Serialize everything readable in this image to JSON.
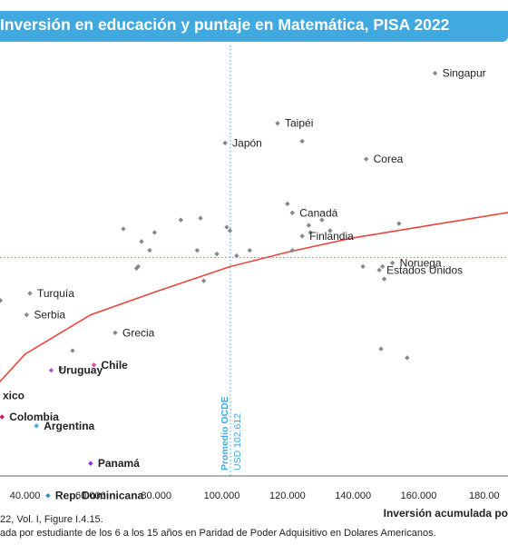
{
  "title": "Inversión en educación y puntaje en Matemática, PISA 2022",
  "chart_data": {
    "type": "scatter",
    "xlabel": "Inversión acumulada po",
    "x_ticks": [
      "40.000",
      "60.000",
      "80.000",
      "100.000",
      "120.000",
      "140.000",
      "160.000",
      "180.00"
    ],
    "x_tick_values": [
      40000,
      60000,
      80000,
      100000,
      120000,
      140000,
      160000,
      180000
    ],
    "xlim": [
      31000,
      190000
    ],
    "ylim": [
      350,
      590
    ],
    "grid": false,
    "reference_line": {
      "label_1": "Promedio OCDE",
      "label_2": "USD 102.612",
      "x": 102612,
      "y": 472,
      "color": "#3fa9e0"
    },
    "trend_color": "#e8463c",
    "trend_points": [
      [
        31000,
        400
      ],
      [
        40000,
        418
      ],
      [
        60000,
        440
      ],
      [
        80000,
        453
      ],
      [
        102612,
        467
      ],
      [
        120000,
        475
      ],
      [
        140000,
        483
      ],
      [
        160000,
        489
      ],
      [
        190000,
        498
      ]
    ],
    "labeled_points": [
      {
        "name": "Singapur",
        "x": 165000,
        "y": 575,
        "color": "#888888",
        "text_color": "#222222",
        "bold": false
      },
      {
        "name": "Taipéi",
        "x": 117000,
        "y": 547,
        "color": "#888888",
        "text_color": "#222222",
        "bold": false
      },
      {
        "name": "Japón",
        "x": 101000,
        "y": 536,
        "color": "#888888",
        "text_color": "#222222",
        "bold": false
      },
      {
        "name": "Corea",
        "x": 144000,
        "y": 527,
        "color": "#888888",
        "text_color": "#222222",
        "bold": false
      },
      {
        "name": "Canadá",
        "x": 121500,
        "y": 497,
        "color": "#888888",
        "text_color": "#222222",
        "bold": false
      },
      {
        "name": "Finlandia",
        "x": 124500,
        "y": 484,
        "color": "#888888",
        "text_color": "#222222",
        "bold": false
      },
      {
        "name": "Noruega",
        "x": 152000,
        "y": 469,
        "color": "#888888",
        "text_color": "#222222",
        "bold": false
      },
      {
        "name": "Estados Unidos",
        "x": 148000,
        "y": 465,
        "color": "#888888",
        "text_color": "#222222",
        "bold": false
      },
      {
        "name": "Turquía",
        "x": 41500,
        "y": 452,
        "color": "#888888",
        "text_color": "#222222",
        "bold": false
      },
      {
        "name": "Serbia",
        "x": 40500,
        "y": 440,
        "color": "#888888",
        "text_color": "#222222",
        "bold": false
      },
      {
        "name": "Grecia",
        "x": 67500,
        "y": 430,
        "color": "#888888",
        "text_color": "#222222",
        "bold": false
      },
      {
        "name": "Chile",
        "x": 61000,
        "y": 412,
        "color": "#e8489a",
        "text_color": "#e8489a",
        "bold": true
      },
      {
        "name": "Uruguay",
        "x": 48000,
        "y": 409,
        "color": "#a560c8",
        "text_color": "#a560c8",
        "bold": true
      },
      {
        "name": "xico",
        "x": 31000,
        "y": 395,
        "color": "#1f9a9a",
        "text_color": "#1f9a9a",
        "bold": true
      },
      {
        "name": "Colombia",
        "x": 33000,
        "y": 383,
        "color": "#c8174f",
        "text_color": "#c8174f",
        "bold": true
      },
      {
        "name": "Argentina",
        "x": 43500,
        "y": 378,
        "color": "#3fa9e0",
        "text_color": "#3fa9e0",
        "bold": true
      },
      {
        "name": "Panamá",
        "x": 60000,
        "y": 357,
        "color": "#8a2be2",
        "text_color": "#8a2be2",
        "bold": true
      },
      {
        "name": "Rep. Dominicana",
        "x": 47000,
        "y": 339,
        "color": "#2c8fb8",
        "text_color": "#2c8fb8",
        "bold": true
      }
    ],
    "other_points": [
      {
        "x": 124500,
        "y": 537
      },
      {
        "x": 120000,
        "y": 502
      },
      {
        "x": 126500,
        "y": 490
      },
      {
        "x": 130500,
        "y": 493
      },
      {
        "x": 133000,
        "y": 487
      },
      {
        "x": 127000,
        "y": 486
      },
      {
        "x": 121500,
        "y": 476
      },
      {
        "x": 154000,
        "y": 491
      },
      {
        "x": 143000,
        "y": 467
      },
      {
        "x": 149500,
        "y": 460
      },
      {
        "x": 149000,
        "y": 467
      },
      {
        "x": 70000,
        "y": 488
      },
      {
        "x": 75500,
        "y": 481
      },
      {
        "x": 79500,
        "y": 486
      },
      {
        "x": 87500,
        "y": 493
      },
      {
        "x": 93500,
        "y": 494
      },
      {
        "x": 101500,
        "y": 489
      },
      {
        "x": 102500,
        "y": 487
      },
      {
        "x": 108500,
        "y": 476
      },
      {
        "x": 92500,
        "y": 476
      },
      {
        "x": 98500,
        "y": 474
      },
      {
        "x": 104500,
        "y": 473
      },
      {
        "x": 78000,
        "y": 476
      },
      {
        "x": 74500,
        "y": 467
      },
      {
        "x": 74000,
        "y": 466
      },
      {
        "x": 94500,
        "y": 459
      },
      {
        "x": 32500,
        "y": 448
      },
      {
        "x": 54500,
        "y": 420
      },
      {
        "x": 51000,
        "y": 410
      },
      {
        "x": 148500,
        "y": 421
      },
      {
        "x": 156500,
        "y": 416
      }
    ]
  },
  "footnote": {
    "line1": "22, Vol. I, Figure I.4.15.",
    "line2": "ada por estudiante de los 6 a los 15 años en Paridad de Poder Adquisitivo en Dolares Americanos."
  }
}
